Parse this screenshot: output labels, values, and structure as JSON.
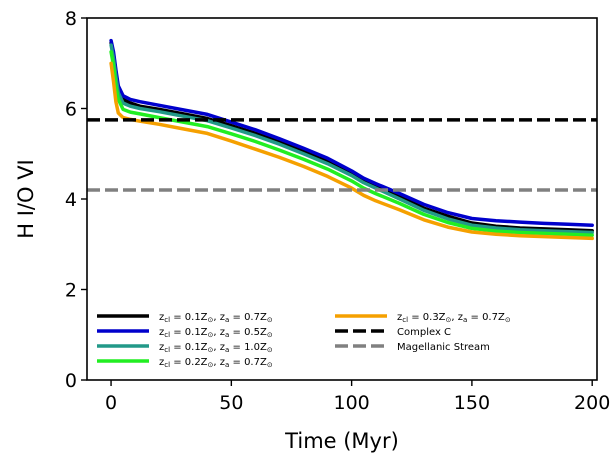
{
  "chart_data": {
    "type": "line",
    "title": "",
    "xlabel": "Time (Myr)",
    "ylabel": "H I/O VI",
    "xlim": [
      -10,
      202
    ],
    "ylim": [
      0,
      8
    ],
    "xticks": [
      0,
      50,
      100,
      150,
      200
    ],
    "yticks": [
      0,
      2,
      4,
      6,
      8
    ],
    "grid": false,
    "legend_position": "lower-left",
    "series": [
      {
        "name": "z_cl = 0.1Z_⊙, z_a = 0.7Z_⊙",
        "label_parts": {
          "cl": "0.1Z",
          "a": "0.7Z"
        },
        "color": "#000000",
        "style": "solid",
        "x": [
          0,
          1,
          2,
          3,
          5,
          8,
          12,
          20,
          30,
          40,
          50,
          60,
          70,
          80,
          90,
          100,
          105,
          110,
          120,
          130,
          140,
          150,
          160,
          170,
          180,
          190,
          200
        ],
        "y": [
          7.45,
          7.2,
          6.8,
          6.45,
          6.2,
          6.12,
          6.05,
          5.98,
          5.88,
          5.78,
          5.62,
          5.45,
          5.26,
          5.06,
          4.84,
          4.58,
          4.42,
          4.3,
          4.05,
          3.8,
          3.62,
          3.47,
          3.4,
          3.36,
          3.34,
          3.32,
          3.3
        ]
      },
      {
        "name": "z_cl = 0.1Z_⊙, z_a = 0.5Z_⊙",
        "label_parts": {
          "cl": "0.1Z",
          "a": "0.5Z"
        },
        "color": "#0000cc",
        "style": "solid",
        "x": [
          0,
          1,
          2,
          3,
          5,
          8,
          12,
          20,
          30,
          40,
          50,
          60,
          70,
          80,
          90,
          100,
          105,
          110,
          120,
          130,
          140,
          150,
          160,
          170,
          180,
          190,
          200
        ],
        "y": [
          7.5,
          7.25,
          6.85,
          6.5,
          6.28,
          6.2,
          6.15,
          6.07,
          5.97,
          5.87,
          5.7,
          5.53,
          5.33,
          5.12,
          4.9,
          4.62,
          4.46,
          4.34,
          4.12,
          3.88,
          3.7,
          3.57,
          3.52,
          3.49,
          3.46,
          3.44,
          3.42
        ]
      },
      {
        "name": "z_cl = 0.1Z_⊙, z_a = 1.0Z_⊙",
        "label_parts": {
          "cl": "0.1Z",
          "a": "1.0Z"
        },
        "color": "#229988",
        "style": "solid",
        "x": [
          0,
          1,
          2,
          3,
          5,
          8,
          12,
          20,
          30,
          40,
          50,
          60,
          70,
          80,
          90,
          100,
          105,
          110,
          120,
          130,
          140,
          150,
          160,
          170,
          180,
          190,
          200
        ],
        "y": [
          7.4,
          7.1,
          6.7,
          6.35,
          6.12,
          6.05,
          6.0,
          5.93,
          5.83,
          5.73,
          5.57,
          5.4,
          5.21,
          5.0,
          4.78,
          4.52,
          4.36,
          4.24,
          4.0,
          3.75,
          3.56,
          3.42,
          3.36,
          3.32,
          3.3,
          3.28,
          3.26
        ]
      },
      {
        "name": "z_cl = 0.2Z_⊙, z_a = 0.7Z_⊙",
        "label_parts": {
          "cl": "0.2Z",
          "a": "0.7Z"
        },
        "color": "#22ee22",
        "style": "solid",
        "x": [
          0,
          1,
          2,
          3,
          5,
          8,
          12,
          20,
          30,
          40,
          50,
          60,
          70,
          80,
          90,
          100,
          105,
          110,
          120,
          130,
          140,
          150,
          160,
          170,
          180,
          190,
          200
        ],
        "y": [
          7.25,
          6.95,
          6.5,
          6.2,
          5.98,
          5.92,
          5.88,
          5.8,
          5.7,
          5.6,
          5.44,
          5.27,
          5.08,
          4.88,
          4.66,
          4.4,
          4.24,
          4.12,
          3.9,
          3.66,
          3.48,
          3.35,
          3.29,
          3.26,
          3.24,
          3.22,
          3.2
        ]
      },
      {
        "name": "z_cl = 0.3Z_⊙, z_a = 0.7Z_⊙",
        "label_parts": {
          "cl": "0.3Z",
          "a": "0.7Z"
        },
        "color": "#f5a000",
        "style": "solid",
        "x": [
          0,
          1,
          2,
          3,
          5,
          8,
          12,
          20,
          30,
          40,
          50,
          60,
          70,
          80,
          90,
          100,
          105,
          110,
          120,
          130,
          140,
          150,
          160,
          170,
          180,
          190,
          200
        ],
        "y": [
          7.0,
          6.6,
          6.15,
          5.9,
          5.8,
          5.76,
          5.72,
          5.65,
          5.55,
          5.45,
          5.28,
          5.1,
          4.92,
          4.72,
          4.5,
          4.24,
          4.08,
          3.96,
          3.76,
          3.54,
          3.38,
          3.27,
          3.22,
          3.19,
          3.17,
          3.15,
          3.13
        ]
      },
      {
        "name": "Complex C",
        "color": "#000000",
        "style": "dashed",
        "hline": 5.75
      },
      {
        "name": "Magellanic Stream",
        "color": "#808080",
        "style": "dashed",
        "hline": 4.2
      }
    ]
  }
}
